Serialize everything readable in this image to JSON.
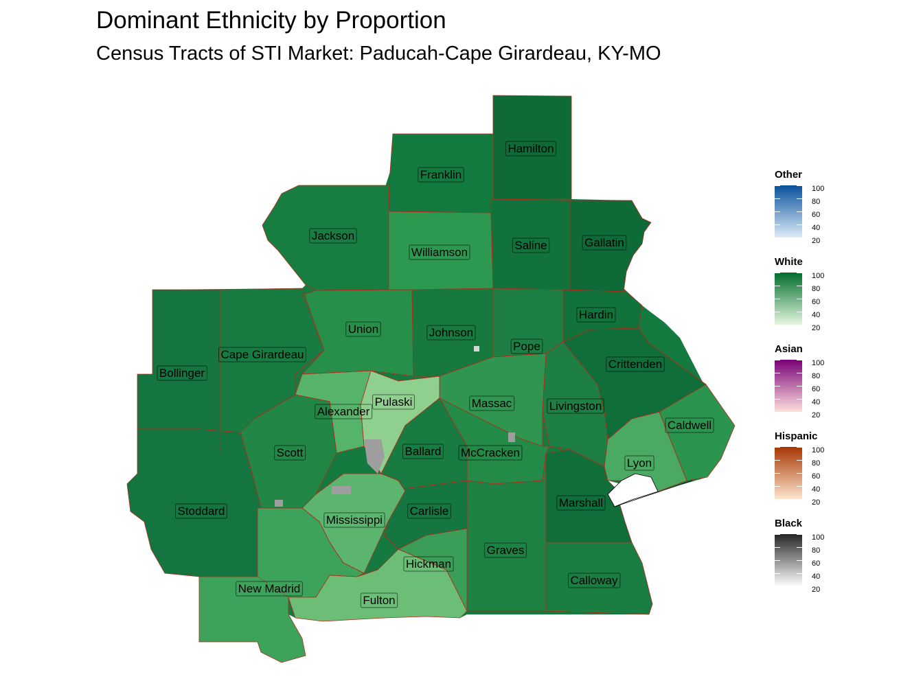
{
  "map": {
    "title": "Dominant Ethnicity by Proportion",
    "subtitle": "Census Tracts of STI Market: Paducah-Cape Girardeau, KY-MO",
    "counties": [
      {
        "name": "Hamilton",
        "fill": "#0e6b38"
      },
      {
        "name": "Franklin",
        "fill": "#137a3f"
      },
      {
        "name": "Jackson",
        "fill": "#187d41"
      },
      {
        "name": "Williamson",
        "fill": "#2d9950"
      },
      {
        "name": "Saline",
        "fill": "#11723c"
      },
      {
        "name": "Gallatin",
        "fill": "#0e6b38"
      },
      {
        "name": "Union",
        "fill": "#268f4a"
      },
      {
        "name": "Johnson",
        "fill": "#18793f"
      },
      {
        "name": "Pope",
        "fill": "#1d7f43"
      },
      {
        "name": "Hardin",
        "fill": "#11723c"
      },
      {
        "name": "Bollinger",
        "fill": "#147540"
      },
      {
        "name": "Cape Girardeau",
        "fill": "#187b42"
      },
      {
        "name": "Crittenden",
        "fill": "#0f6e3a"
      },
      {
        "name": "Pulaski",
        "fill": "#8fd08f"
      },
      {
        "name": "Alexander",
        "fill": "#56b36a"
      },
      {
        "name": "Massac",
        "fill": "#2f9550"
      },
      {
        "name": "Livingston",
        "fill": "#1d7f43"
      },
      {
        "name": "Caldwell",
        "fill": "#2b9550"
      },
      {
        "name": "Scott",
        "fill": "#218646"
      },
      {
        "name": "Ballard",
        "fill": "#187b42"
      },
      {
        "name": "McCracken",
        "fill": "#248a48"
      },
      {
        "name": "Lyon",
        "fill": "#4aa963"
      },
      {
        "name": "Stoddard",
        "fill": "#147540"
      },
      {
        "name": "Mississippi",
        "fill": "#5bb56f"
      },
      {
        "name": "Carlisle",
        "fill": "#167641"
      },
      {
        "name": "Marshall",
        "fill": "#0f6e3a"
      },
      {
        "name": "Graves",
        "fill": "#1e8144"
      },
      {
        "name": "Hickman",
        "fill": "#3a9e58"
      },
      {
        "name": "New Madrid",
        "fill": "#3da25a"
      },
      {
        "name": "Fulton",
        "fill": "#6cbe77"
      },
      {
        "name": "Calloway",
        "fill": "#1a7e43"
      }
    ]
  },
  "legend": {
    "groups": [
      {
        "title": "Other",
        "color_low": "#deebf7",
        "color_high": "#08519c",
        "ticks": [
          "100",
          "80",
          "60",
          "40",
          "20"
        ]
      },
      {
        "title": "White",
        "color_low": "#e5f5e0",
        "color_high": "#006d2c",
        "ticks": [
          "100",
          "80",
          "60",
          "40",
          "20"
        ]
      },
      {
        "title": "Asian",
        "color_low": "#fde0dd",
        "color_high": "#7a0177",
        "ticks": [
          "100",
          "80",
          "60",
          "40",
          "20"
        ]
      },
      {
        "title": "Hispanic",
        "color_low": "#fee6ce",
        "color_high": "#a63603",
        "ticks": [
          "100",
          "80",
          "60",
          "40",
          "20"
        ]
      },
      {
        "title": "Black",
        "color_low": "#ffffff",
        "color_high": "#252525",
        "ticks": [
          "100",
          "80",
          "60",
          "40",
          "20"
        ]
      }
    ]
  }
}
